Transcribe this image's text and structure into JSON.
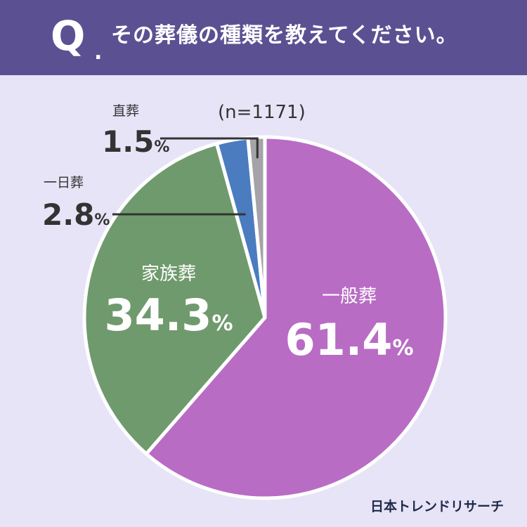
{
  "header": {
    "q_mark": "Q",
    "q_dot": ".",
    "question": "その葬儀の種類を教えてください。"
  },
  "chart_data": {
    "type": "pie",
    "sample_note": "(n=1171)",
    "slices": [
      {
        "label": "一般葬",
        "value": 61.4,
        "value_text": "61.4",
        "color": "#b86cc4"
      },
      {
        "label": "家族葬",
        "value": 34.3,
        "value_text": "34.3",
        "color": "#6f9a6d"
      },
      {
        "label": "一日葬",
        "value": 2.8,
        "value_text": "2.8",
        "color": "#4a7cbf"
      },
      {
        "label": "直葬",
        "value": 1.5,
        "value_text": "1.5",
        "color": "#a3a3a8"
      }
    ],
    "unit": "%"
  },
  "brand": {
    "name": "日本トレンドリサーチ"
  },
  "colors": {
    "background": "#e8e4f7",
    "header": "#5b5192",
    "label_text": "#333333",
    "leader_line": "#333333"
  }
}
